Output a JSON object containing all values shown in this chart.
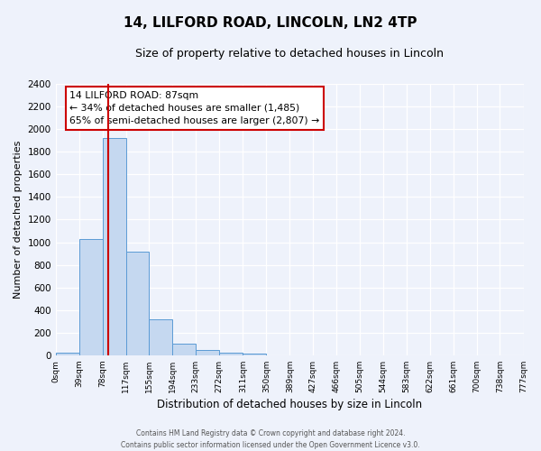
{
  "title": "14, LILFORD ROAD, LINCOLN, LN2 4TP",
  "subtitle": "Size of property relative to detached houses in Lincoln",
  "xlabel": "Distribution of detached houses by size in Lincoln",
  "ylabel": "Number of detached properties",
  "bin_edges": [
    0,
    39,
    78,
    117,
    155,
    194,
    233,
    272,
    311,
    350,
    389,
    427,
    466,
    505,
    544,
    583,
    622,
    661,
    700,
    738,
    777
  ],
  "bar_heights": [
    25,
    1025,
    1920,
    920,
    320,
    105,
    45,
    20,
    15,
    0,
    0,
    0,
    0,
    0,
    0,
    0,
    0,
    0,
    0,
    0
  ],
  "bar_color": "#c5d8f0",
  "bar_edge_color": "#5b9bd5",
  "tick_labels": [
    "0sqm",
    "39sqm",
    "78sqm",
    "117sqm",
    "155sqm",
    "194sqm",
    "233sqm",
    "272sqm",
    "311sqm",
    "350sqm",
    "389sqm",
    "427sqm",
    "466sqm",
    "505sqm",
    "544sqm",
    "583sqm",
    "622sqm",
    "661sqm",
    "700sqm",
    "738sqm",
    "777sqm"
  ],
  "property_line_x": 87,
  "property_line_color": "#cc0000",
  "ylim": [
    0,
    2400
  ],
  "yticks": [
    0,
    200,
    400,
    600,
    800,
    1000,
    1200,
    1400,
    1600,
    1800,
    2000,
    2200,
    2400
  ],
  "annotation_title": "14 LILFORD ROAD: 87sqm",
  "annotation_line1": "← 34% of detached houses are smaller (1,485)",
  "annotation_line2": "65% of semi-detached houses are larger (2,807) →",
  "footer_line1": "Contains HM Land Registry data © Crown copyright and database right 2024.",
  "footer_line2": "Contains public sector information licensed under the Open Government Licence v3.0.",
  "bg_color": "#eef2fb",
  "plot_bg_color": "#eef2fb",
  "title_fontsize": 11,
  "subtitle_fontsize": 9
}
